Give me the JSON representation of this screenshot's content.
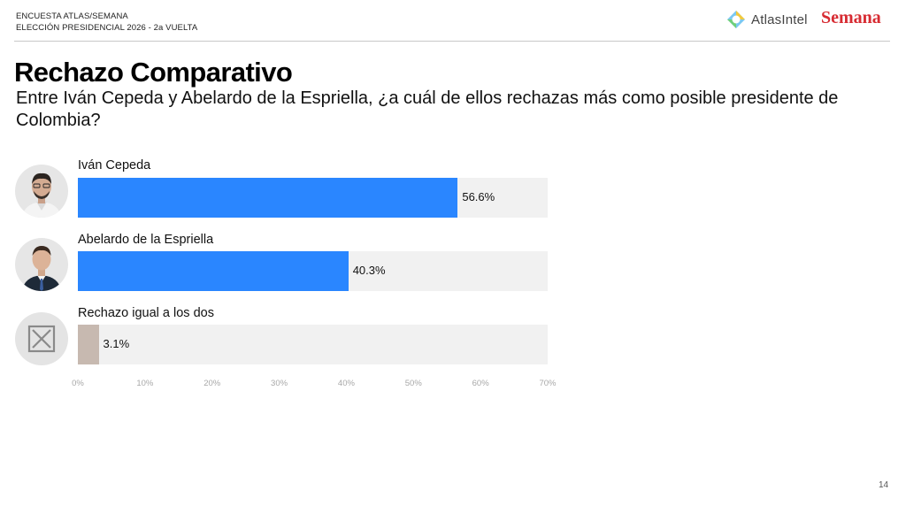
{
  "header": {
    "line1": "ENCUESTA ATLAS/SEMANA",
    "line2": "ELECCIÓN PRESIDENCIAL 2026 - 2a VUELTA",
    "atlas_logo_text": "AtlasIntel",
    "semana_logo_text": "Semana"
  },
  "title": "Rechazo Comparativo",
  "subtitle": "Entre Iván Cepeda y Abelardo de la Espriella, ¿a cuál de ellos rechazas más como posible presidente de Colombia?",
  "page_number": "14",
  "colors": {
    "candidate_bar": "#2a86ff",
    "neither_bar": "#c7b9b0",
    "track": "#f1f1f1"
  },
  "icons": {
    "avatar_1": "person-photo-icon",
    "avatar_2": "person-photo-icon",
    "avatar_3": "x-box-icon"
  },
  "chart_data": {
    "type": "bar",
    "orientation": "horizontal",
    "categories": [
      "Iván Cepeda",
      "Abelardo de la Espriella",
      "Rechazo igual a los dos"
    ],
    "values": [
      56.6,
      40.3,
      3.1
    ],
    "value_labels": [
      "56.6%",
      "40.3%",
      "3.1%"
    ],
    "xlim": [
      0,
      70
    ],
    "ticks": [
      "0%",
      "10%",
      "20%",
      "30%",
      "40%",
      "50%",
      "60%",
      "70%"
    ],
    "grid": false
  }
}
